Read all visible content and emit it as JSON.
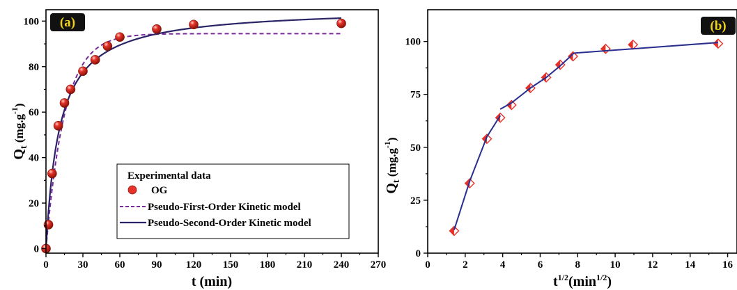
{
  "colors": {
    "point_fill": "#e5332a",
    "pfo_line": "#7a2a9e",
    "pso_line": "#2a2466",
    "label_bg": "#111111",
    "label_text": "#f2d21a",
    "b_line": "#2a2f8f",
    "b_marker": "#e5332a"
  },
  "chart_data": [
    {
      "type": "scatter",
      "panel_label": "(a)",
      "xlabel": "t (min)",
      "ylabel": {
        "base": "Q",
        "sub": "t",
        "units_pre": " (mg.g",
        "sup": "-1",
        "units_post": ")"
      },
      "xlim": [
        0,
        270
      ],
      "ylim": [
        -2,
        105
      ],
      "xticks": [
        0,
        30,
        60,
        90,
        120,
        150,
        180,
        210,
        240,
        270
      ],
      "yticks": [
        0,
        20,
        40,
        60,
        80,
        100
      ],
      "grid": false,
      "legend_position": "bottom-right",
      "legend_title": "Experimental data",
      "series": [
        {
          "name": "OG",
          "kind": "points",
          "x": [
            0,
            2,
            5,
            10,
            15,
            20,
            30,
            40,
            50,
            60,
            90,
            120,
            240
          ],
          "y": [
            0,
            10.5,
            33,
            54,
            64,
            70,
            78,
            83,
            89,
            93,
            96.5,
            98.5,
            99
          ]
        },
        {
          "name": "Pseudo-First-Order Kinetic model",
          "kind": "line",
          "style": "dashed",
          "model": {
            "qe": 94.5,
            "k1": 0.065
          }
        },
        {
          "name": "Pseudo-Second-Order Kinetic model",
          "kind": "line",
          "style": "solid",
          "model": {
            "qe": 106,
            "k2": 0.00085
          }
        }
      ]
    },
    {
      "type": "line",
      "panel_label": "(b)",
      "xlabel": {
        "base": "t",
        "sup": "1/2",
        "mid": "(min",
        "sup2": "1/2",
        "end": ")"
      },
      "ylabel": {
        "base": "Q",
        "sub": "t",
        "units_pre": " (mg.g",
        "sup": "-1",
        "units_post": ")"
      },
      "xlim": [
        0,
        16.5
      ],
      "ylim": [
        0,
        115
      ],
      "xticks": [
        0,
        2,
        4,
        6,
        8,
        10,
        12,
        14,
        16
      ],
      "yticks": [
        0,
        25,
        50,
        75,
        100
      ],
      "grid": false,
      "markers": {
        "x": [
          1.41,
          2.24,
          3.16,
          3.87,
          4.47,
          5.48,
          6.32,
          7.07,
          7.75,
          9.49,
          10.95,
          15.49
        ],
        "y": [
          10.5,
          33,
          54,
          64,
          70,
          78,
          83,
          89,
          93,
          96.5,
          98.5,
          99
        ]
      },
      "fit_segments": [
        {
          "x": [
            1.41,
            2.24,
            3.16,
            3.87
          ],
          "y": [
            11,
            34,
            55,
            65
          ]
        },
        {
          "x": [
            3.87,
            4.47,
            5.48,
            6.32,
            7.07,
            7.8
          ],
          "y": [
            68,
            71,
            78,
            83,
            88.5,
            94.5
          ]
        },
        {
          "x": [
            7.8,
            15.49
          ],
          "y": [
            94.5,
            99.5
          ]
        }
      ]
    }
  ]
}
